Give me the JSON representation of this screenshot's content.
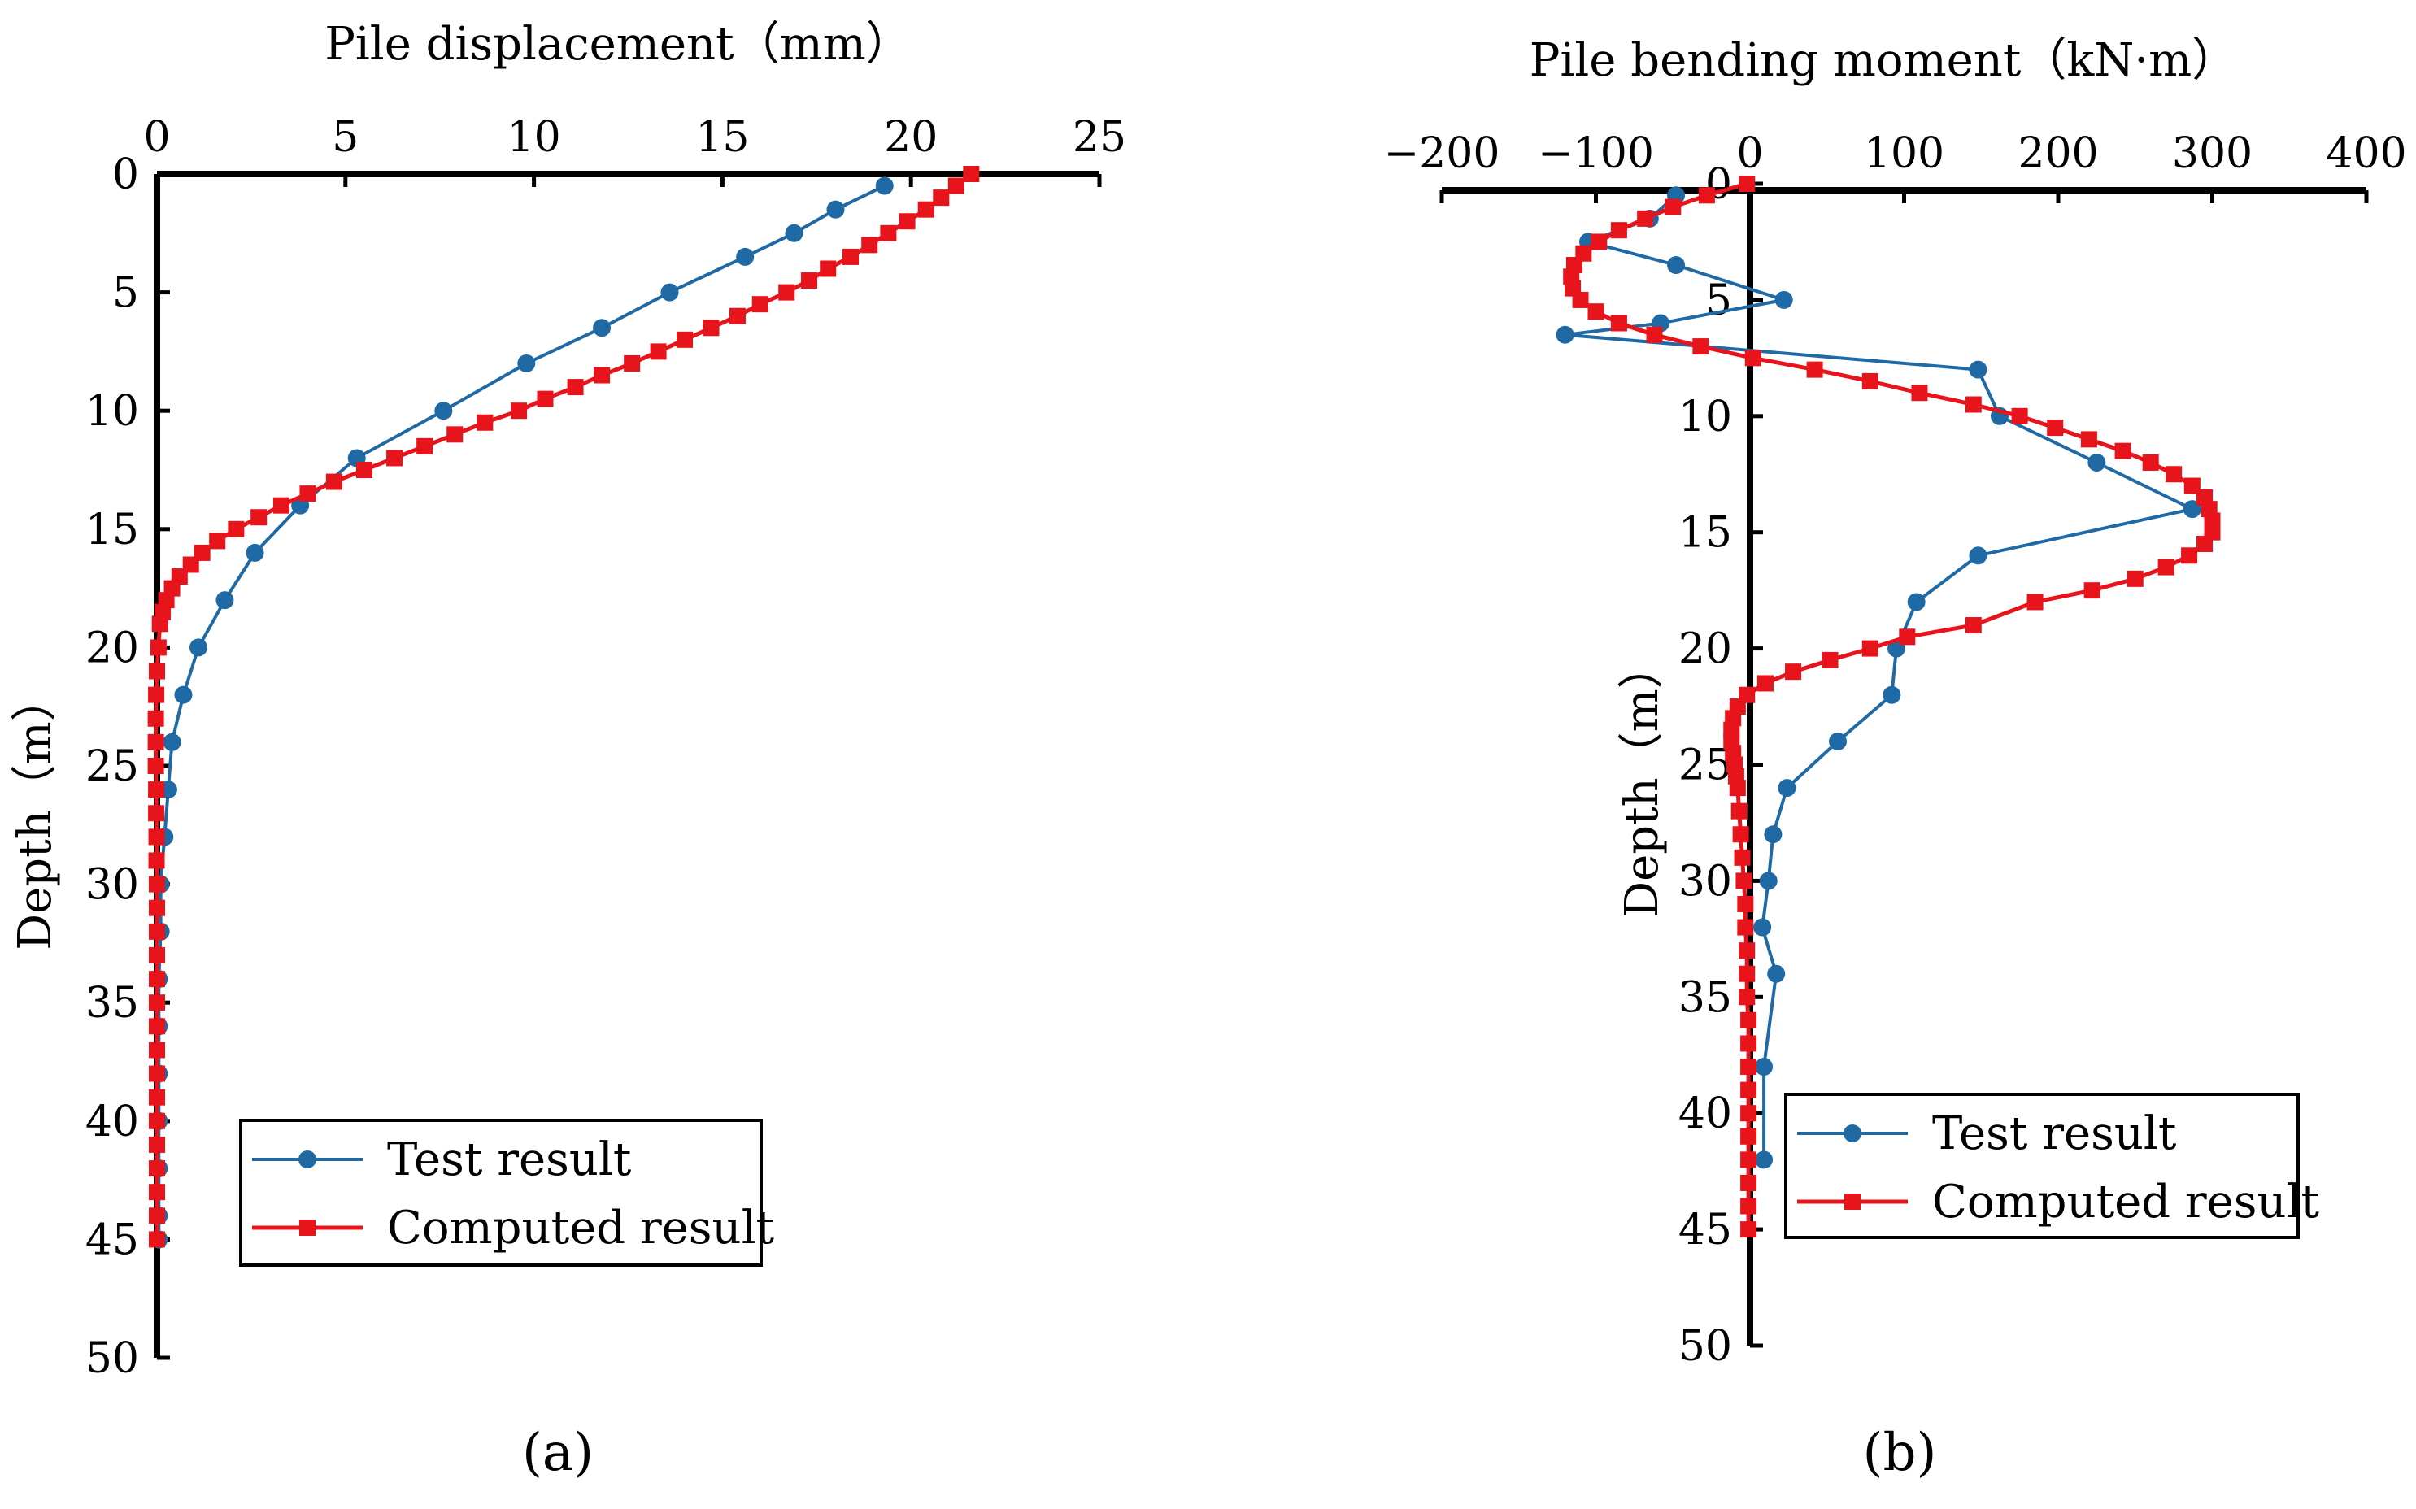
{
  "chart_data": [
    {
      "type": "line",
      "panel_label": "(a)",
      "title": "",
      "xlabel": "Pile displacement（mm）",
      "ylabel": "Depth（m）",
      "xlim": [
        0,
        25
      ],
      "ylim": [
        50,
        0
      ],
      "x_ticks": [
        0,
        5,
        10,
        15,
        20,
        25
      ],
      "y_ticks": [
        0,
        5,
        10,
        15,
        20,
        25,
        30,
        35,
        40,
        45,
        50
      ],
      "x_axis_position": "top",
      "legend_position": "bottom-right",
      "series": [
        {
          "name": "Test result",
          "color": "#1f6aa5",
          "marker": "circle",
          "points": [
            [
              19.3,
              0.5
            ],
            [
              18.0,
              1.5
            ],
            [
              16.9,
              2.5
            ],
            [
              15.6,
              3.5
            ],
            [
              13.6,
              5.0
            ],
            [
              11.8,
              6.5
            ],
            [
              9.8,
              8.0
            ],
            [
              7.6,
              10.0
            ],
            [
              5.3,
              12.0
            ],
            [
              3.8,
              14.0
            ],
            [
              2.6,
              16.0
            ],
            [
              1.8,
              18.0
            ],
            [
              1.1,
              20.0
            ],
            [
              0.7,
              22.0
            ],
            [
              0.4,
              24.0
            ],
            [
              0.3,
              26.0
            ],
            [
              0.2,
              28.0
            ],
            [
              0.1,
              30.0
            ],
            [
              0.1,
              32.0
            ],
            [
              0.05,
              34.0
            ],
            [
              0.05,
              36.0
            ],
            [
              0.05,
              38.0
            ],
            [
              0.05,
              40.0
            ],
            [
              0.05,
              42.0
            ],
            [
              0.05,
              44.0
            ],
            [
              0.05,
              45.0
            ]
          ]
        },
        {
          "name": "Computed result",
          "color": "#e8141c",
          "marker": "square",
          "points": [
            [
              21.6,
              0.0
            ],
            [
              21.2,
              0.5
            ],
            [
              20.8,
              1.0
            ],
            [
              20.4,
              1.5
            ],
            [
              19.9,
              2.0
            ],
            [
              19.4,
              2.5
            ],
            [
              18.9,
              3.0
            ],
            [
              18.4,
              3.5
            ],
            [
              17.8,
              4.0
            ],
            [
              17.3,
              4.5
            ],
            [
              16.7,
              5.0
            ],
            [
              16.0,
              5.5
            ],
            [
              15.4,
              6.0
            ],
            [
              14.7,
              6.5
            ],
            [
              14.0,
              7.0
            ],
            [
              13.3,
              7.5
            ],
            [
              12.6,
              8.0
            ],
            [
              11.8,
              8.5
            ],
            [
              11.1,
              9.0
            ],
            [
              10.3,
              9.5
            ],
            [
              9.6,
              10.0
            ],
            [
              8.7,
              10.5
            ],
            [
              7.9,
              11.0
            ],
            [
              7.1,
              11.5
            ],
            [
              6.3,
              12.0
            ],
            [
              5.5,
              12.5
            ],
            [
              4.7,
              13.0
            ],
            [
              4.0,
              13.5
            ],
            [
              3.3,
              14.0
            ],
            [
              2.7,
              14.5
            ],
            [
              2.1,
              15.0
            ],
            [
              1.6,
              15.5
            ],
            [
              1.2,
              16.0
            ],
            [
              0.9,
              16.5
            ],
            [
              0.6,
              17.0
            ],
            [
              0.4,
              17.5
            ],
            [
              0.25,
              18.0
            ],
            [
              0.15,
              18.5
            ],
            [
              0.08,
              19.0
            ],
            [
              0.04,
              20.0
            ],
            [
              0.0,
              21.0
            ],
            [
              -0.02,
              22.0
            ],
            [
              -0.03,
              23.0
            ],
            [
              -0.03,
              24.0
            ],
            [
              -0.03,
              25.0
            ],
            [
              -0.02,
              26.0
            ],
            [
              -0.02,
              27.0
            ],
            [
              -0.01,
              28.0
            ],
            [
              -0.01,
              29.0
            ],
            [
              0.0,
              30.0
            ],
            [
              0.0,
              31.0
            ],
            [
              0.0,
              32.0
            ],
            [
              0.0,
              33.0
            ],
            [
              0.0,
              34.0
            ],
            [
              0.0,
              35.0
            ],
            [
              0.0,
              36.0
            ],
            [
              0.0,
              37.0
            ],
            [
              0.0,
              38.0
            ],
            [
              0.0,
              39.0
            ],
            [
              0.0,
              40.0
            ],
            [
              0.0,
              41.0
            ],
            [
              0.0,
              42.0
            ],
            [
              0.0,
              43.0
            ],
            [
              0.0,
              44.0
            ],
            [
              0.0,
              45.0
            ]
          ]
        }
      ]
    },
    {
      "type": "line",
      "panel_label": "(b)",
      "title": "",
      "xlabel": "Pile bending moment（kN·m）",
      "ylabel": "Depth（m）",
      "xlim": [
        -200,
        400
      ],
      "ylim": [
        50,
        0
      ],
      "x_ticks": [
        -200,
        -100,
        0,
        100,
        200,
        300,
        400
      ],
      "x_tick_labels": [
        "−200",
        "−100",
        "0",
        "100",
        "200",
        "300",
        "400"
      ],
      "y_ticks": [
        0,
        5,
        10,
        15,
        20,
        25,
        30,
        35,
        40,
        45,
        50
      ],
      "x_axis_position": "top",
      "legend_position": "bottom-right",
      "series": [
        {
          "name": "Test result",
          "color": "#1f6aa5",
          "marker": "circle",
          "points": [
            [
              -48,
              0.5
            ],
            [
              -65,
              1.5
            ],
            [
              -105,
              2.5
            ],
            [
              -48,
              3.5
            ],
            [
              22,
              5.0
            ],
            [
              -58,
              6.0
            ],
            [
              -120,
              6.5
            ],
            [
              148,
              8.0
            ],
            [
              162,
              10.0
            ],
            [
              225,
              12.0
            ],
            [
              287,
              14.0
            ],
            [
              148,
              16.0
            ],
            [
              108,
              18.0
            ],
            [
              95,
              20.0
            ],
            [
              92,
              22.0
            ],
            [
              57,
              24.0
            ],
            [
              24,
              26.0
            ],
            [
              15,
              28.0
            ],
            [
              12,
              30.0
            ],
            [
              8,
              32.0
            ],
            [
              17,
              34.0
            ],
            [
              9,
              38.0
            ],
            [
              9,
              42.0
            ]
          ]
        },
        {
          "name": "Computed result",
          "color": "#e8141c",
          "marker": "square",
          "points": [
            [
              -2,
              0.0
            ],
            [
              -28,
              0.5
            ],
            [
              -50,
              1.0
            ],
            [
              -68,
              1.5
            ],
            [
              -85,
              2.0
            ],
            [
              -98,
              2.5
            ],
            [
              -108,
              3.0
            ],
            [
              -114,
              3.5
            ],
            [
              -116,
              4.0
            ],
            [
              -115,
              4.5
            ],
            [
              -110,
              5.0
            ],
            [
              -100,
              5.5
            ],
            [
              -85,
              6.0
            ],
            [
              -62,
              6.5
            ],
            [
              -32,
              7.0
            ],
            [
              2,
              7.5
            ],
            [
              42,
              8.0
            ],
            [
              78,
              8.5
            ],
            [
              110,
              9.0
            ],
            [
              145,
              9.5
            ],
            [
              175,
              10.0
            ],
            [
              198,
              10.5
            ],
            [
              220,
              11.0
            ],
            [
              242,
              11.5
            ],
            [
              260,
              12.0
            ],
            [
              275,
              12.5
            ],
            [
              287,
              13.0
            ],
            [
              295,
              13.5
            ],
            [
              298,
              14.0
            ],
            [
              300,
              14.5
            ],
            [
              300,
              15.0
            ],
            [
              295,
              15.5
            ],
            [
              285,
              16.0
            ],
            [
              270,
              16.5
            ],
            [
              250,
              17.0
            ],
            [
              222,
              17.5
            ],
            [
              185,
              18.0
            ],
            [
              145,
              19.0
            ],
            [
              102,
              19.5
            ],
            [
              78,
              20.0
            ],
            [
              52,
              20.5
            ],
            [
              28,
              21.0
            ],
            [
              10,
              21.5
            ],
            [
              -2,
              22.0
            ],
            [
              -8,
              22.5
            ],
            [
              -11,
              23.0
            ],
            [
              -12,
              23.5
            ],
            [
              -12,
              24.0
            ],
            [
              -11,
              24.5
            ],
            [
              -10,
              25.0
            ],
            [
              -9,
              25.5
            ],
            [
              -8,
              26.0
            ],
            [
              -7,
              27.0
            ],
            [
              -6,
              28.0
            ],
            [
              -5,
              29.0
            ],
            [
              -4,
              30.0
            ],
            [
              -3,
              31.0
            ],
            [
              -3,
              32.0
            ],
            [
              -2,
              33.0
            ],
            [
              -2,
              34.0
            ],
            [
              -2,
              35.0
            ],
            [
              -1,
              36.0
            ],
            [
              -1,
              37.0
            ],
            [
              -1,
              38.0
            ],
            [
              -1,
              39.0
            ],
            [
              -1,
              40.0
            ],
            [
              -1,
              41.0
            ],
            [
              -1,
              42.0
            ],
            [
              -1,
              43.0
            ],
            [
              -1,
              44.0
            ],
            [
              -1,
              45.0
            ]
          ]
        }
      ]
    }
  ]
}
